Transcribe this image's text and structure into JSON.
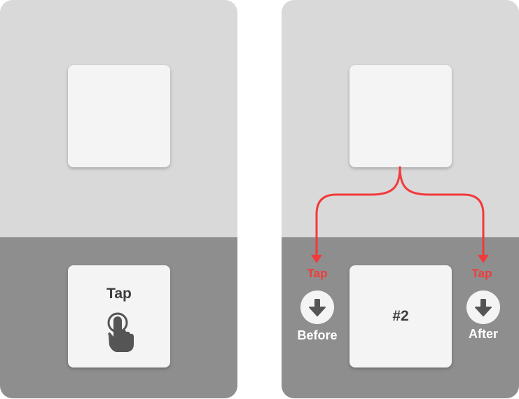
{
  "left_panel": {
    "lower_card": {
      "label": "Tap",
      "icon": "hand-tap-icon"
    }
  },
  "right_panel": {
    "lower_card": {
      "label": "#2"
    },
    "before_option": {
      "tap_label": "Tap",
      "icon": "arrow-down-circle-icon",
      "caption": "Before"
    },
    "after_option": {
      "tap_label": "Tap",
      "icon": "arrow-down-circle-icon",
      "caption": "After"
    }
  },
  "colors": {
    "panel_top": "#d9d9d9",
    "panel_bottom": "#8e8e8e",
    "card": "#f4f4f4",
    "accent_red": "#f23a3a",
    "icon_dark": "#555555"
  }
}
